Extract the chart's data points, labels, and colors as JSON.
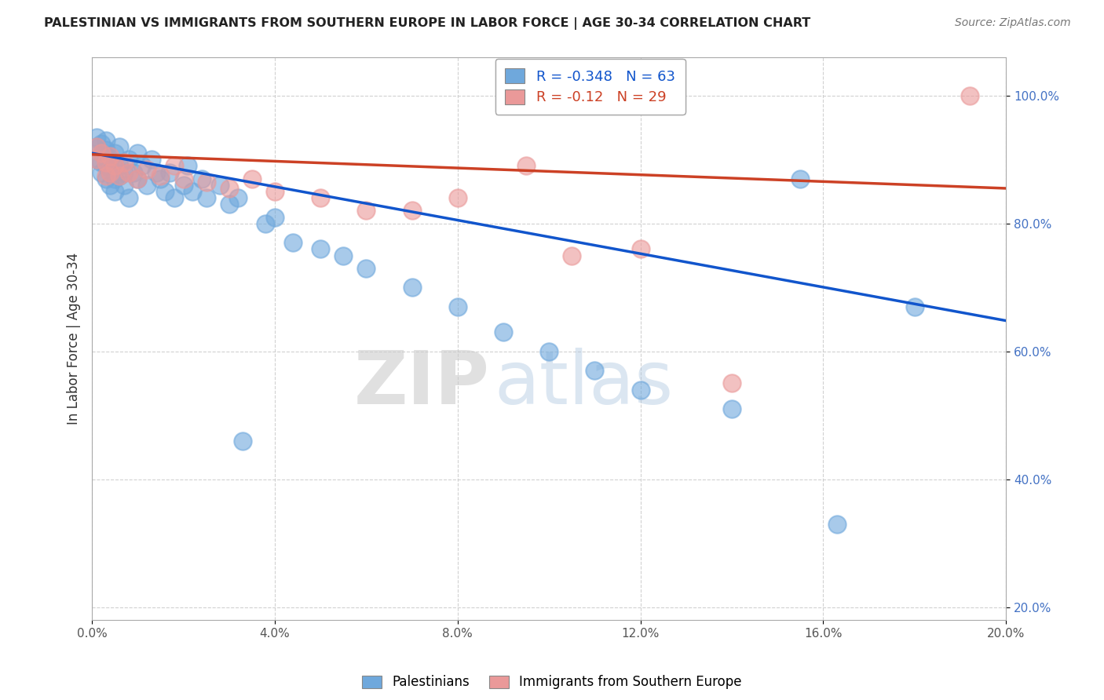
{
  "title": "PALESTINIAN VS IMMIGRANTS FROM SOUTHERN EUROPE IN LABOR FORCE | AGE 30-34 CORRELATION CHART",
  "source": "Source: ZipAtlas.com",
  "ylabel": "In Labor Force | Age 30-34",
  "xlim": [
    0.0,
    0.2
  ],
  "ylim": [
    0.18,
    1.06
  ],
  "xticks": [
    0.0,
    0.04,
    0.08,
    0.12,
    0.16,
    0.2
  ],
  "yticks": [
    0.2,
    0.4,
    0.6,
    0.8,
    1.0
  ],
  "xtick_labels": [
    "0.0%",
    "4.0%",
    "8.0%",
    "12.0%",
    "16.0%",
    "20.0%"
  ],
  "ytick_labels": [
    "20.0%",
    "40.0%",
    "60.0%",
    "80.0%",
    "100.0%"
  ],
  "blue_R": -0.348,
  "blue_N": 63,
  "pink_R": -0.12,
  "pink_N": 29,
  "blue_color": "#6fa8dc",
  "pink_color": "#ea9999",
  "blue_line_color": "#1155cc",
  "pink_line_color": "#cc4125",
  "legend_blue_label": "Palestinians",
  "legend_pink_label": "Immigrants from Southern Europe",
  "watermark_zip": "ZIP",
  "watermark_atlas": "atlas",
  "blue_x": [
    0.001,
    0.001,
    0.001,
    0.002,
    0.002,
    0.002,
    0.002,
    0.003,
    0.003,
    0.003,
    0.003,
    0.003,
    0.004,
    0.004,
    0.004,
    0.004,
    0.005,
    0.005,
    0.005,
    0.005,
    0.006,
    0.006,
    0.006,
    0.007,
    0.007,
    0.008,
    0.008,
    0.009,
    0.01,
    0.01,
    0.011,
    0.012,
    0.013,
    0.014,
    0.015,
    0.016,
    0.017,
    0.018,
    0.02,
    0.021,
    0.022,
    0.024,
    0.025,
    0.028,
    0.03,
    0.032,
    0.033,
    0.038,
    0.04,
    0.044,
    0.05,
    0.055,
    0.06,
    0.07,
    0.08,
    0.09,
    0.1,
    0.11,
    0.12,
    0.14,
    0.155,
    0.163,
    0.18
  ],
  "blue_y": [
    0.935,
    0.9,
    0.92,
    0.91,
    0.88,
    0.925,
    0.895,
    0.87,
    0.89,
    0.93,
    0.905,
    0.915,
    0.86,
    0.9,
    0.88,
    0.895,
    0.87,
    0.91,
    0.85,
    0.89,
    0.89,
    0.92,
    0.875,
    0.88,
    0.86,
    0.9,
    0.84,
    0.88,
    0.87,
    0.91,
    0.89,
    0.86,
    0.9,
    0.88,
    0.87,
    0.85,
    0.88,
    0.84,
    0.86,
    0.89,
    0.85,
    0.87,
    0.84,
    0.86,
    0.83,
    0.84,
    0.46,
    0.8,
    0.81,
    0.77,
    0.76,
    0.75,
    0.73,
    0.7,
    0.67,
    0.63,
    0.6,
    0.57,
    0.54,
    0.51,
    0.87,
    0.33,
    0.67
  ],
  "pink_x": [
    0.001,
    0.001,
    0.002,
    0.003,
    0.003,
    0.004,
    0.004,
    0.005,
    0.006,
    0.007,
    0.008,
    0.01,
    0.012,
    0.015,
    0.018,
    0.02,
    0.025,
    0.03,
    0.035,
    0.04,
    0.05,
    0.06,
    0.07,
    0.08,
    0.095,
    0.105,
    0.12,
    0.14,
    0.192
  ],
  "pink_y": [
    0.92,
    0.9,
    0.91,
    0.895,
    0.875,
    0.905,
    0.88,
    0.89,
    0.875,
    0.895,
    0.88,
    0.87,
    0.885,
    0.875,
    0.89,
    0.87,
    0.865,
    0.855,
    0.87,
    0.85,
    0.84,
    0.82,
    0.82,
    0.84,
    0.89,
    0.75,
    0.76,
    0.55,
    1.0
  ],
  "blue_line_x": [
    0.0,
    0.2
  ],
  "blue_line_y": [
    0.91,
    0.648
  ],
  "pink_line_x": [
    0.0,
    0.2
  ],
  "pink_line_y": [
    0.908,
    0.855
  ]
}
